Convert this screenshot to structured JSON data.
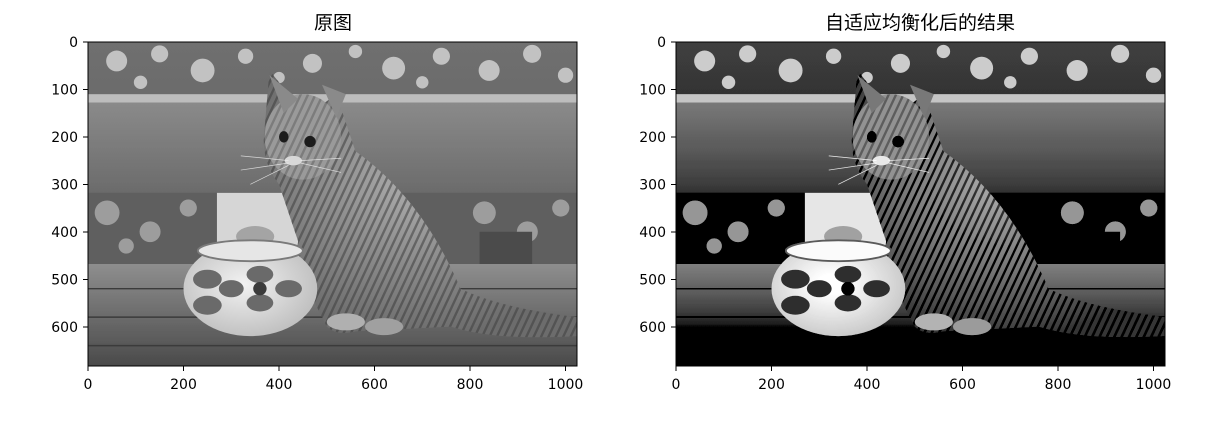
{
  "figure": {
    "panels": [
      {
        "id": "original",
        "title": "原图",
        "x_ticks": [
          "0",
          "200",
          "400",
          "600",
          "800",
          "1000"
        ],
        "y_ticks": [
          "0",
          "100",
          "200",
          "300",
          "400",
          "500",
          "600"
        ],
        "image": {
          "subject": "grayscale photo of a tabby kitten touching a floral ceramic jar on a wooden table",
          "contrast": "normal"
        }
      },
      {
        "id": "equalized",
        "title": "自适应均衡化后的结果",
        "x_ticks": [
          "0",
          "200",
          "400",
          "600",
          "800",
          "1000"
        ],
        "y_ticks": [
          "0",
          "100",
          "200",
          "300",
          "400",
          "500",
          "600"
        ],
        "image": {
          "subject": "same kitten photo after adaptive histogram equalization",
          "contrast": "high"
        }
      }
    ]
  },
  "colors": {
    "background": "#ffffff",
    "axis": "#000000",
    "text": "#000000"
  },
  "chart_data": [
    {
      "type": "heatmap",
      "title": "原图",
      "xlim": [
        0,
        1024
      ],
      "ylim": [
        683,
        0
      ],
      "x_ticks": [
        0,
        200,
        400,
        600,
        800,
        1000
      ],
      "y_ticks": [
        0,
        100,
        200,
        300,
        400,
        500,
        600
      ]
    },
    {
      "type": "heatmap",
      "title": "自适应均衡化后的结果",
      "xlim": [
        0,
        1024
      ],
      "ylim": [
        683,
        0
      ],
      "x_ticks": [
        0,
        200,
        400,
        600,
        800,
        1000
      ],
      "y_ticks": [
        0,
        100,
        200,
        300,
        400,
        500,
        600
      ]
    }
  ]
}
